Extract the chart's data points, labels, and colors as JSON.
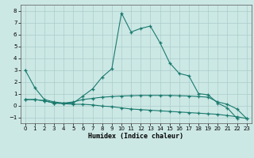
{
  "xlabel": "Humidex (Indice chaleur)",
  "xlim": [
    -0.5,
    23.5
  ],
  "ylim": [
    -1.5,
    8.5
  ],
  "xticks": [
    0,
    1,
    2,
    3,
    4,
    5,
    6,
    7,
    8,
    9,
    10,
    11,
    12,
    13,
    14,
    15,
    16,
    17,
    18,
    19,
    20,
    21,
    22,
    23
  ],
  "yticks": [
    -1,
    0,
    1,
    2,
    3,
    4,
    5,
    6,
    7,
    8
  ],
  "bg_color": "#cce8e5",
  "grid_color": "#aaccca",
  "line_color": "#1a7a6e",
  "line1_x": [
    0,
    1,
    2,
    3,
    4,
    5,
    6,
    7,
    8,
    9,
    10,
    11,
    12,
    13,
    14,
    15,
    16,
    17,
    18,
    19,
    20,
    21,
    22,
    23
  ],
  "line1_y": [
    3.0,
    1.5,
    0.5,
    0.3,
    0.2,
    0.2,
    0.8,
    1.4,
    2.4,
    3.1,
    7.8,
    6.2,
    6.5,
    6.7,
    5.3,
    3.6,
    2.7,
    2.5,
    1.0,
    0.9,
    0.2,
    -0.2,
    -1.1,
    null
  ],
  "line2_x": [
    0,
    1,
    2,
    3,
    4,
    5,
    6,
    7,
    8,
    9,
    10,
    11,
    12,
    13,
    14,
    15,
    16,
    17,
    18,
    19,
    20,
    21,
    22,
    23
  ],
  "line2_y": [
    0.5,
    0.5,
    0.4,
    0.2,
    0.2,
    0.3,
    0.5,
    0.6,
    0.7,
    0.75,
    0.8,
    0.82,
    0.85,
    0.85,
    0.85,
    0.85,
    0.82,
    0.8,
    0.75,
    0.7,
    0.3,
    0.1,
    -0.3,
    -1.1
  ],
  "line3_x": [
    0,
    1,
    2,
    3,
    4,
    5,
    6,
    7,
    8,
    9,
    10,
    11,
    12,
    13,
    14,
    15,
    16,
    17,
    18,
    19,
    20,
    21,
    22,
    23
  ],
  "line3_y": [
    0.5,
    0.5,
    0.4,
    0.2,
    0.15,
    0.1,
    0.1,
    0.05,
    -0.05,
    -0.1,
    -0.2,
    -0.3,
    -0.35,
    -0.4,
    -0.45,
    -0.5,
    -0.55,
    -0.6,
    -0.65,
    -0.7,
    -0.75,
    -0.85,
    -0.95,
    -1.1
  ]
}
